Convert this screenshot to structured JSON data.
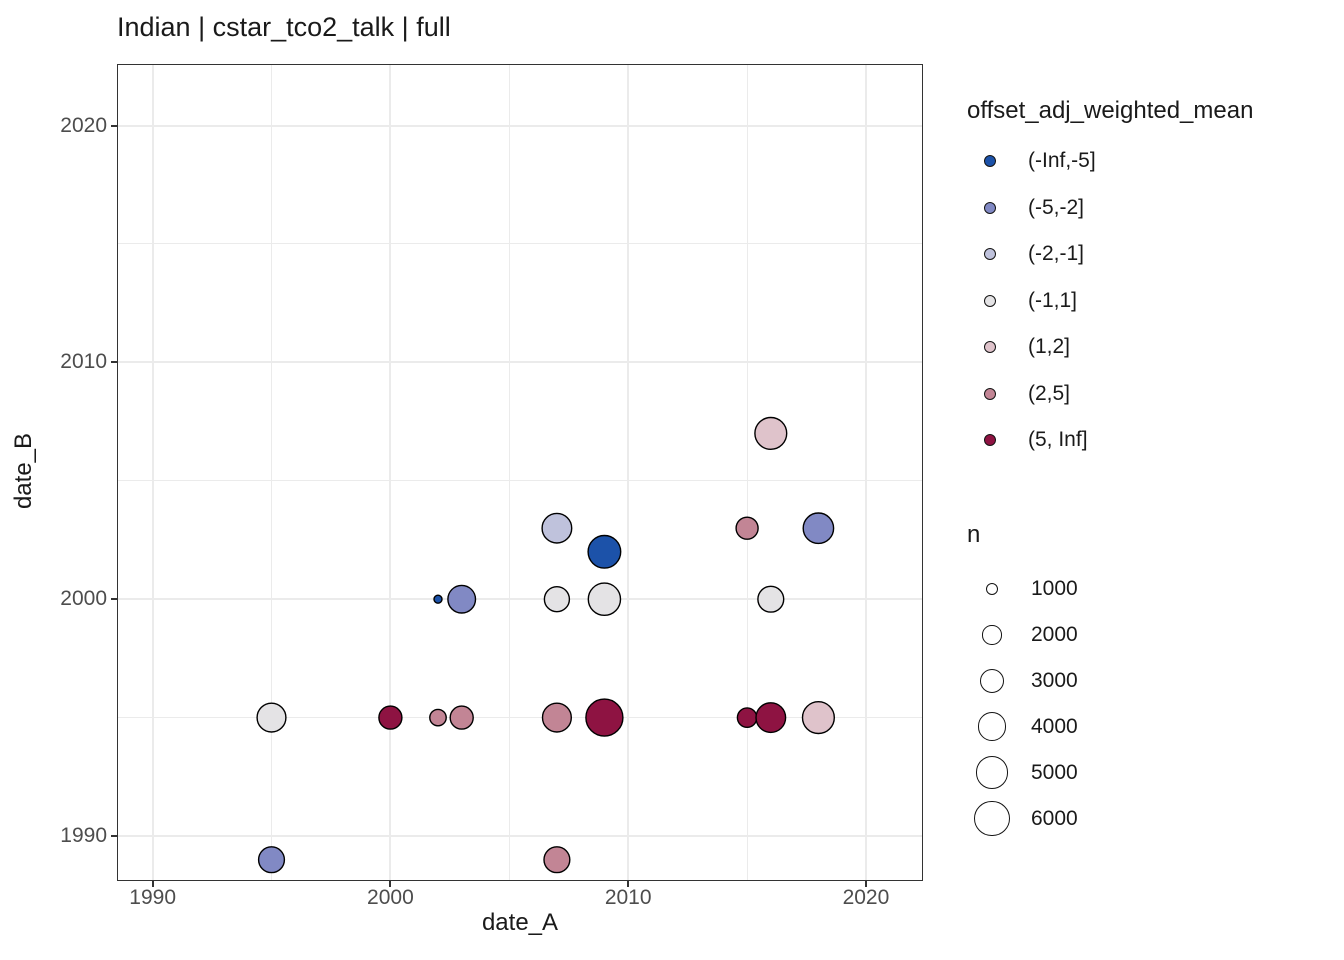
{
  "title": "Indian | cstar_tco2_talk | full",
  "x_axis": {
    "label": "date_A",
    "ticks": [
      {
        "label": "1990",
        "value": 1990
      },
      {
        "label": "2000",
        "value": 2000
      },
      {
        "label": "2010",
        "value": 2010
      },
      {
        "label": "2020",
        "value": 2020
      }
    ],
    "minor": [
      1995,
      2005,
      2015
    ]
  },
  "y_axis": {
    "label": "date_B",
    "ticks": [
      {
        "label": "1990",
        "value": 1990
      },
      {
        "label": "2000",
        "value": 2000
      },
      {
        "label": "2010",
        "value": 2010
      },
      {
        "label": "2020",
        "value": 2020
      }
    ],
    "minor": [
      1995,
      2005,
      2015
    ]
  },
  "color_legend": {
    "title": "offset_adj_weighted_mean",
    "items": [
      {
        "label": "(-Inf,-5]",
        "color": "#1c52a9"
      },
      {
        "label": "(-5,-2]",
        "color": "#8189c4"
      },
      {
        "label": "(-2,-1]",
        "color": "#bfc2dc"
      },
      {
        "label": "(-1,1]",
        "color": "#e4e3e5"
      },
      {
        "label": "(1,2]",
        "color": "#dfc3cb"
      },
      {
        "label": "(2,5]",
        "color": "#c28595"
      },
      {
        "label": "(5, Inf]",
        "color": "#8e1342"
      }
    ]
  },
  "size_legend": {
    "title": "n",
    "items": [
      1000,
      2000,
      3000,
      4000,
      5000,
      6000
    ]
  },
  "chart_data": {
    "type": "scatter",
    "title": "Indian | cstar_tco2_talk | full",
    "xlabel": "date_A",
    "ylabel": "date_B",
    "xlim": [
      1988.5,
      2022.4
    ],
    "ylim": [
      1988.1,
      2022.6
    ],
    "grid": true,
    "legend_position": "right",
    "color_variable": "offset_adj_weighted_mean",
    "size_variable": "n",
    "x_major_gridlines": [
      1990,
      2000,
      2010,
      2020
    ],
    "x_minor_gridlines": [
      1995,
      2005,
      2015
    ],
    "y_major_gridlines": [
      1990,
      2000,
      2010,
      2020
    ],
    "y_minor_gridlines": [
      1995,
      2005,
      2015
    ],
    "points": [
      {
        "date_A": 1995,
        "date_B": 1995,
        "n": 4000,
        "offset_bin": "(-1,1]"
      },
      {
        "date_A": 1995,
        "date_B": 1989,
        "n": 3300,
        "offset_bin": "(-5,-2]"
      },
      {
        "date_A": 2000,
        "date_B": 1995,
        "n": 2700,
        "offset_bin": "(5, Inf]"
      },
      {
        "date_A": 2002,
        "date_B": 1995,
        "n": 1500,
        "offset_bin": "(2,5]"
      },
      {
        "date_A": 2003,
        "date_B": 1995,
        "n": 2700,
        "offset_bin": "(2,5]"
      },
      {
        "date_A": 2002,
        "date_B": 2000,
        "n": 500,
        "offset_bin": "(-Inf,-5]"
      },
      {
        "date_A": 2003,
        "date_B": 2000,
        "n": 3700,
        "offset_bin": "(-5,-2]"
      },
      {
        "date_A": 2007,
        "date_B": 2003,
        "n": 4200,
        "offset_bin": "(-2,-1]"
      },
      {
        "date_A": 2007,
        "date_B": 2000,
        "n": 3100,
        "offset_bin": "(-1,1]"
      },
      {
        "date_A": 2007,
        "date_B": 1995,
        "n": 4000,
        "offset_bin": "(2,5]"
      },
      {
        "date_A": 2007,
        "date_B": 1989,
        "n": 3300,
        "offset_bin": "(2,5]"
      },
      {
        "date_A": 2009,
        "date_B": 2002,
        "n": 5000,
        "offset_bin": "(-Inf,-5]"
      },
      {
        "date_A": 2009,
        "date_B": 2000,
        "n": 4900,
        "offset_bin": "(-1,1]"
      },
      {
        "date_A": 2009,
        "date_B": 1995,
        "n": 6300,
        "offset_bin": "(5, Inf]"
      },
      {
        "date_A": 2016,
        "date_B": 2007,
        "n": 4800,
        "offset_bin": "(1,2]"
      },
      {
        "date_A": 2015,
        "date_B": 2003,
        "n": 2500,
        "offset_bin": "(2,5]"
      },
      {
        "date_A": 2018,
        "date_B": 2003,
        "n": 4400,
        "offset_bin": "(-5,-2]"
      },
      {
        "date_A": 2016,
        "date_B": 2000,
        "n": 3300,
        "offset_bin": "(-1,1]"
      },
      {
        "date_A": 2015,
        "date_B": 1995,
        "n": 2000,
        "offset_bin": "(5, Inf]"
      },
      {
        "date_A": 2016,
        "date_B": 1995,
        "n": 4200,
        "offset_bin": "(5, Inf]"
      },
      {
        "date_A": 2018,
        "date_B": 1995,
        "n": 4800,
        "offset_bin": "(1,2]"
      }
    ]
  }
}
